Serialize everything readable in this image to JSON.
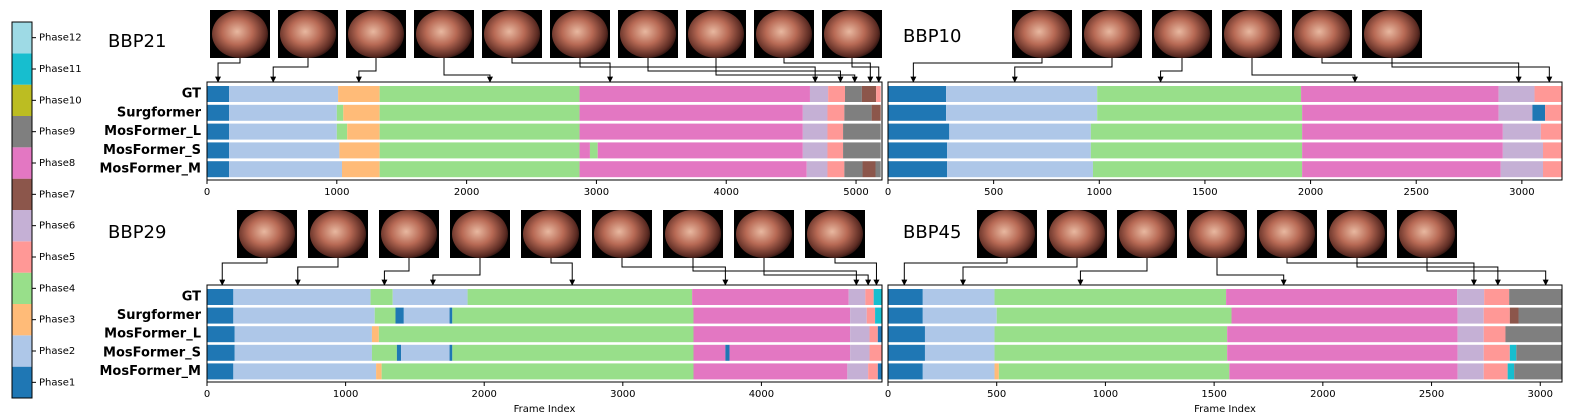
{
  "legend": {
    "labels": [
      "Phase1",
      "Phase2",
      "Phase3",
      "Phase4",
      "Phase5",
      "Phase6",
      "Phase7",
      "Phase8",
      "Phase9",
      "Phase10",
      "Phase11",
      "Phase12"
    ],
    "colors": [
      "#1f77b4",
      "#aec7e8",
      "#ffbb78",
      "#98df8a",
      "#ff9896",
      "#c5b0d5",
      "#8c564b",
      "#e377c2",
      "#7f7f7f",
      "#bcbd22",
      "#17becf",
      "#9edae5"
    ]
  },
  "chart_data": [
    {
      "type": "timeline",
      "title": "BBP21",
      "xlim": [
        0,
        5200
      ],
      "xticks": [
        0,
        1000,
        2000,
        3000,
        4000,
        5000
      ],
      "keyframes": [
        85,
        510,
        1170,
        2180,
        3105,
        4685,
        4880,
        4990,
        5110,
        5175
      ],
      "series": [
        {
          "name": "GT",
          "values": [
            [
              0,
              170,
              1
            ],
            [
              170,
              1010,
              2
            ],
            [
              1010,
              1330,
              3
            ],
            [
              1330,
              2870,
              4
            ],
            [
              2870,
              4645,
              8
            ],
            [
              4645,
              4785,
              6
            ],
            [
              4785,
              4915,
              5
            ],
            [
              4915,
              5045,
              9
            ],
            [
              5045,
              5155,
              7
            ],
            [
              5155,
              5190,
              5
            ]
          ]
        },
        {
          "name": "Surgformer",
          "values": [
            [
              0,
              170,
              1
            ],
            [
              170,
              1000,
              2
            ],
            [
              1000,
              1050,
              4
            ],
            [
              1050,
              1330,
              3
            ],
            [
              1330,
              2870,
              4
            ],
            [
              2870,
              4590,
              8
            ],
            [
              4590,
              4780,
              6
            ],
            [
              4780,
              4910,
              5
            ],
            [
              4910,
              5120,
              9
            ],
            [
              5120,
              5190,
              7
            ]
          ]
        },
        {
          "name": "MosFormer_L",
          "values": [
            [
              0,
              170,
              1
            ],
            [
              170,
              1000,
              2
            ],
            [
              1000,
              1080,
              4
            ],
            [
              1080,
              1330,
              3
            ],
            [
              1330,
              2870,
              4
            ],
            [
              2870,
              4590,
              8
            ],
            [
              4590,
              4780,
              6
            ],
            [
              4780,
              4900,
              5
            ],
            [
              4900,
              5190,
              9
            ]
          ]
        },
        {
          "name": "MosFormer_S",
          "values": [
            [
              0,
              170,
              1
            ],
            [
              170,
              1020,
              2
            ],
            [
              1020,
              1330,
              3
            ],
            [
              1330,
              2870,
              4
            ],
            [
              2870,
              2950,
              8
            ],
            [
              2950,
              3010,
              4
            ],
            [
              3010,
              4590,
              8
            ],
            [
              4590,
              4780,
              6
            ],
            [
              4780,
              4900,
              5
            ],
            [
              4900,
              5190,
              9
            ]
          ]
        },
        {
          "name": "MosFormer_M",
          "values": [
            [
              0,
              170,
              1
            ],
            [
              170,
              1040,
              2
            ],
            [
              1040,
              1330,
              3
            ],
            [
              1330,
              2870,
              4
            ],
            [
              2870,
              4620,
              8
            ],
            [
              4620,
              4780,
              6
            ],
            [
              4780,
              4910,
              5
            ],
            [
              4910,
              5050,
              9
            ],
            [
              5050,
              5150,
              7
            ],
            [
              5150,
              5190,
              9
            ]
          ]
        }
      ]
    },
    {
      "type": "timeline",
      "title": "BBP10",
      "xlim": [
        0,
        3190
      ],
      "xticks": [
        0,
        500,
        1000,
        1500,
        2000,
        2500,
        3000
      ],
      "keyframes": [
        120,
        600,
        1290,
        2210,
        2985,
        3130
      ],
      "series": [
        {
          "values": [
            [
              0,
              275,
              1
            ],
            [
              275,
              990,
              2
            ],
            [
              990,
              1955,
              4
            ],
            [
              1955,
              2890,
              8
            ],
            [
              2890,
              3060,
              6
            ],
            [
              3060,
              3190,
              5
            ]
          ]
        },
        {
          "values": [
            [
              0,
              275,
              1
            ],
            [
              275,
              990,
              2
            ],
            [
              990,
              1960,
              4
            ],
            [
              1960,
              2890,
              8
            ],
            [
              2890,
              3050,
              6
            ],
            [
              3050,
              3110,
              1
            ],
            [
              3110,
              3190,
              5
            ]
          ]
        },
        {
          "values": [
            [
              0,
              290,
              1
            ],
            [
              290,
              960,
              2
            ],
            [
              960,
              1960,
              4
            ],
            [
              1960,
              2910,
              8
            ],
            [
              2910,
              3090,
              6
            ],
            [
              3090,
              3190,
              5
            ]
          ]
        },
        {
          "values": [
            [
              0,
              280,
              1
            ],
            [
              280,
              960,
              2
            ],
            [
              960,
              1960,
              4
            ],
            [
              1960,
              2910,
              8
            ],
            [
              2910,
              3100,
              6
            ],
            [
              3100,
              3190,
              5
            ]
          ]
        },
        {
          "values": [
            [
              0,
              280,
              1
            ],
            [
              280,
              970,
              2
            ],
            [
              970,
              1960,
              4
            ],
            [
              1960,
              2900,
              8
            ],
            [
              2900,
              3100,
              6
            ],
            [
              3100,
              3190,
              5
            ]
          ]
        }
      ]
    },
    {
      "type": "timeline",
      "title": "BBP29",
      "xlabel": "Frame Index",
      "xlim": [
        0,
        4870
      ],
      "xticks": [
        0,
        1000,
        2000,
        3000,
        4000
      ],
      "keyframes": [
        110,
        655,
        1280,
        1630,
        2635,
        3740,
        4685,
        4770,
        4830
      ],
      "series": [
        {
          "name": "GT",
          "values": [
            [
              0,
              190,
              1
            ],
            [
              190,
              1180,
              2
            ],
            [
              1180,
              1340,
              4
            ],
            [
              1340,
              1880,
              2
            ],
            [
              1880,
              3500,
              4
            ],
            [
              3500,
              4630,
              8
            ],
            [
              4630,
              4750,
              6
            ],
            [
              4750,
              4810,
              5
            ],
            [
              4810,
              4870,
              11
            ]
          ]
        },
        {
          "name": "Surgformer",
          "values": [
            [
              0,
              190,
              1
            ],
            [
              190,
              1210,
              2
            ],
            [
              1210,
              1360,
              4
            ],
            [
              1360,
              1420,
              1
            ],
            [
              1420,
              1750,
              2
            ],
            [
              1750,
              1770,
              1
            ],
            [
              1770,
              3510,
              4
            ],
            [
              3510,
              4640,
              8
            ],
            [
              4640,
              4760,
              6
            ],
            [
              4760,
              4820,
              5
            ],
            [
              4820,
              4870,
              11
            ]
          ]
        },
        {
          "name": "MosFormer_L",
          "values": [
            [
              0,
              200,
              1
            ],
            [
              200,
              1190,
              2
            ],
            [
              1190,
              1240,
              3
            ],
            [
              1240,
              3510,
              4
            ],
            [
              3510,
              4640,
              8
            ],
            [
              4640,
              4780,
              6
            ],
            [
              4780,
              4840,
              5
            ],
            [
              4840,
              4870,
              1
            ]
          ]
        },
        {
          "name": "MosFormer_S",
          "values": [
            [
              0,
              200,
              1
            ],
            [
              200,
              1190,
              2
            ],
            [
              1190,
              1370,
              4
            ],
            [
              1370,
              1400,
              1
            ],
            [
              1400,
              1750,
              2
            ],
            [
              1750,
              1770,
              1
            ],
            [
              1770,
              3510,
              4
            ],
            [
              3510,
              3740,
              8
            ],
            [
              3740,
              3770,
              1
            ],
            [
              3770,
              4640,
              8
            ],
            [
              4640,
              4780,
              6
            ],
            [
              4780,
              4870,
              5
            ]
          ]
        },
        {
          "name": "MosFormer_M",
          "values": [
            [
              0,
              190,
              1
            ],
            [
              190,
              1220,
              2
            ],
            [
              1220,
              1260,
              3
            ],
            [
              1260,
              3510,
              4
            ],
            [
              3510,
              4620,
              8
            ],
            [
              4620,
              4770,
              6
            ],
            [
              4770,
              4840,
              5
            ],
            [
              4840,
              4870,
              1
            ]
          ]
        }
      ]
    },
    {
      "type": "timeline",
      "title": "BBP45",
      "xlabel": "Frame Index",
      "xlim": [
        0,
        3100
      ],
      "xticks": [
        0,
        500,
        1000,
        1500,
        2000,
        2500,
        3000
      ],
      "keyframes": [
        75,
        345,
        885,
        1820,
        2695,
        2805,
        3025
      ],
      "series": [
        {
          "values": [
            [
              0,
              160,
              1
            ],
            [
              160,
              490,
              2
            ],
            [
              490,
              1555,
              4
            ],
            [
              1555,
              2618,
              8
            ],
            [
              2618,
              2742,
              6
            ],
            [
              2742,
              2857,
              5
            ],
            [
              2857,
              3100,
              9
            ]
          ]
        },
        {
          "values": [
            [
              0,
              160,
              1
            ],
            [
              160,
              500,
              2
            ],
            [
              500,
              1580,
              4
            ],
            [
              1580,
              2620,
              8
            ],
            [
              2620,
              2740,
              6
            ],
            [
              2740,
              2860,
              5
            ],
            [
              2860,
              2900,
              7
            ],
            [
              2900,
              3100,
              9
            ]
          ]
        },
        {
          "values": [
            [
              0,
              170,
              1
            ],
            [
              170,
              490,
              2
            ],
            [
              490,
              1560,
              4
            ],
            [
              1560,
              2620,
              8
            ],
            [
              2620,
              2740,
              6
            ],
            [
              2740,
              2840,
              5
            ],
            [
              2840,
              3100,
              9
            ]
          ]
        },
        {
          "values": [
            [
              0,
              170,
              1
            ],
            [
              170,
              490,
              2
            ],
            [
              490,
              1560,
              4
            ],
            [
              1560,
              2620,
              8
            ],
            [
              2620,
              2740,
              6
            ],
            [
              2740,
              2860,
              5
            ],
            [
              2860,
              2890,
              11
            ],
            [
              2890,
              3100,
              9
            ]
          ]
        },
        {
          "values": [
            [
              0,
              160,
              1
            ],
            [
              160,
              490,
              2
            ],
            [
              490,
              510,
              3
            ],
            [
              510,
              1570,
              4
            ],
            [
              1570,
              2620,
              8
            ],
            [
              2620,
              2740,
              6
            ],
            [
              2740,
              2850,
              5
            ],
            [
              2850,
              2880,
              11
            ],
            [
              2880,
              3100,
              9
            ]
          ]
        }
      ]
    }
  ]
}
